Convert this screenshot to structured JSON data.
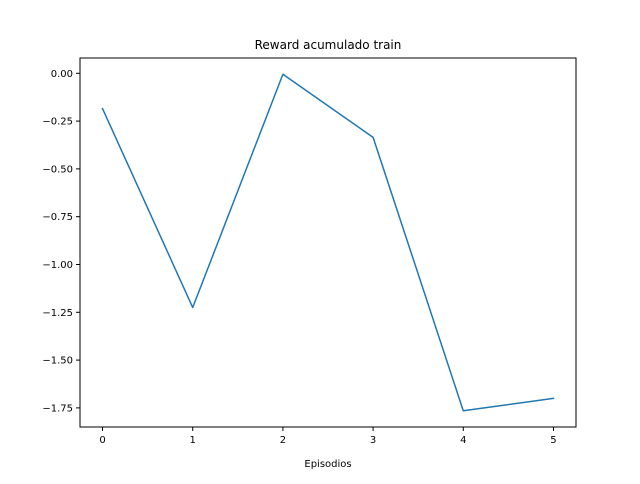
{
  "chart_data": {
    "type": "line",
    "title": "Reward acumulado train",
    "xlabel": "Episodios",
    "ylabel": "",
    "x": [
      0,
      1,
      2,
      3,
      4,
      5
    ],
    "series": [
      {
        "values": [
          -0.185,
          -1.225,
          -0.005,
          -0.335,
          -1.765,
          -1.7
        ]
      }
    ],
    "xlim": [
      -0.25,
      5.25
    ],
    "ylim": [
      -1.85,
      0.08
    ],
    "xticks": [
      0,
      1,
      2,
      3,
      4,
      5
    ],
    "xtick_labels": [
      "0",
      "1",
      "2",
      "3",
      "4",
      "5"
    ],
    "yticks": [
      0,
      -0.25,
      -0.5,
      -0.75,
      -1.0,
      -1.25,
      -1.5,
      -1.75
    ],
    "ytick_labels": [
      "0.00",
      "−0.25",
      "−0.50",
      "−0.75",
      "−1.00",
      "−1.25",
      "−1.50",
      "−1.75"
    ],
    "grid": false,
    "legend": "none",
    "colors": {
      "line": "#1f77b4",
      "axes": "#000000",
      "background": "#ffffff"
    }
  }
}
